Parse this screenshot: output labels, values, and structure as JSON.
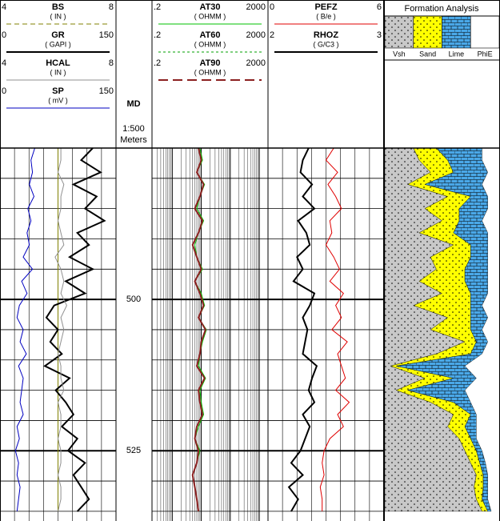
{
  "chart_data": {
    "type": "well-log",
    "depth": {
      "label": "MD",
      "scale": "1:500",
      "units": "Meters",
      "ylim": [
        475,
        536.6
      ],
      "grid": [
        475,
        480,
        485,
        490,
        495,
        500,
        505,
        510,
        515,
        520,
        525,
        530,
        535
      ],
      "labels": [
        500,
        525
      ]
    },
    "depths": [
      475,
      477,
      479,
      481,
      483,
      485,
      487,
      489,
      491,
      493,
      495,
      497,
      499,
      501,
      503,
      505,
      507,
      509,
      511,
      513,
      515,
      517,
      519,
      521,
      523,
      525,
      527,
      529,
      531,
      533,
      535
    ],
    "tracks": [
      {
        "log": false,
        "curves": [
          {
            "name": "BS",
            "unit": "( IN )",
            "scale": [
              4,
              8
            ],
            "color": "#808000",
            "dash": "6,4",
            "weight": "thin",
            "values": [
              6,
              6,
              6,
              6,
              6,
              6,
              6,
              6,
              6,
              6,
              6,
              6,
              6,
              6,
              6,
              6,
              6,
              6,
              6,
              6,
              6,
              6,
              6,
              6,
              6,
              6,
              6,
              6,
              6,
              6,
              6
            ]
          },
          {
            "name": "GR",
            "unit": "( GAPI )",
            "scale": [
              0,
              150
            ],
            "color": "#000000",
            "dash": "none",
            "weight": "bold",
            "values": [
              120,
              105,
              130,
              95,
              125,
              110,
              135,
              100,
              115,
              90,
              120,
              85,
              110,
              70,
              60,
              75,
              65,
              80,
              58,
              90,
              72,
              85,
              95,
              80,
              100,
              88,
              110,
              95,
              105,
              115,
              100
            ]
          },
          {
            "name": "HCAL",
            "unit": "( IN )",
            "scale": [
              4,
              8
            ],
            "color": "#909090",
            "dash": "none",
            "weight": "thin",
            "values": [
              6.1,
              6.1,
              6.0,
              6.2,
              6.1,
              6.1,
              6.0,
              6.1,
              6.2,
              5.9,
              6.1,
              6.2,
              6.1,
              6.3,
              6.1,
              6.2,
              6.1,
              6.0,
              6.1,
              6.1,
              6.2,
              6.0,
              6.1,
              6.1,
              6.0,
              6.1,
              6.1,
              6.0,
              6.1,
              6.1,
              6.0
            ]
          },
          {
            "name": "SP",
            "unit": "( mV )",
            "scale": [
              0,
              150
            ],
            "color": "#0000c0",
            "dash": "none",
            "weight": "thin",
            "values": [
              45,
              40,
              42,
              38,
              44,
              36,
              40,
              35,
              38,
              30,
              42,
              28,
              35,
              25,
              22,
              30,
              26,
              34,
              24,
              30,
              28,
              26,
              30,
              22,
              25,
              20,
              24,
              22,
              26,
              24,
              22
            ]
          }
        ]
      },
      {
        "log": true,
        "curves": [
          {
            "name": "AT30",
            "unit": "( OHMM )",
            "scale": [
              {
                "value": 0.2,
                "label": ".2"
              },
              2000
            ],
            "color": "#00c000",
            "dash": "none",
            "weight": "thin",
            "values": [
              9,
              11,
              7,
              13,
              9,
              7,
              12,
              8,
              6,
              7,
              11,
              6,
              10,
              13,
              8,
              15,
              11,
              9,
              8,
              14,
              9,
              10,
              12,
              8,
              6,
              9,
              7,
              5,
              6,
              7,
              8
            ]
          },
          {
            "name": "AT60",
            "unit": "( OHMM )",
            "scale": [
              {
                "value": 0.2,
                "label": ".2"
              },
              2000
            ],
            "color": "#00a000",
            "dash": "3,3",
            "weight": "thin",
            "values": [
              8,
              10,
              7,
              12,
              9,
              6,
              11,
              8,
              5,
              7,
              10,
              6,
              9,
              12,
              8,
              14,
              10,
              9,
              7,
              13,
              8,
              9,
              11,
              7,
              6,
              8,
              7,
              5,
              6,
              7,
              8
            ]
          },
          {
            "name": "AT90",
            "unit": "( OHMM )",
            "scale": [
              {
                "value": 0.2,
                "label": ".2"
              },
              2000
            ],
            "color": "#8b2020",
            "dash": "12,6",
            "weight": "bold",
            "values": [
              8,
              10,
              7,
              12,
              9,
              6,
              11,
              8,
              5,
              7,
              10,
              6,
              9,
              12,
              8,
              14,
              10,
              9,
              7,
              13,
              8,
              9,
              11,
              7,
              6,
              8,
              7,
              5,
              6,
              7,
              8
            ]
          }
        ]
      },
      {
        "log": false,
        "curves": [
          {
            "name": "PEFZ",
            "unit": "( B/e )",
            "scale": [
              0,
              6
            ],
            "color": "#e00000",
            "dash": "none",
            "weight": "thin",
            "values": [
              3.4,
              3.0,
              3.6,
              3.1,
              3.5,
              3.8,
              3.2,
              3.3,
              3.0,
              3.4,
              3.7,
              3.2,
              3.9,
              3.5,
              3.8,
              3.3,
              4.1,
              3.6,
              3.8,
              4.0,
              3.5,
              4.2,
              3.6,
              3.9,
              3.2,
              2.9,
              2.8,
              2.9,
              2.7,
              2.8,
              2.8
            ]
          },
          {
            "name": "RHOZ",
            "unit": "( G/C3 )",
            "scale": [
              2,
              3
            ],
            "color": "#000000",
            "dash": "none",
            "weight": "bold",
            "values": [
              2.35,
              2.3,
              2.28,
              2.38,
              2.3,
              2.4,
              2.26,
              2.33,
              2.36,
              2.25,
              2.3,
              2.22,
              2.4,
              2.36,
              2.3,
              2.34,
              2.32,
              2.3,
              2.42,
              2.38,
              2.35,
              2.4,
              2.3,
              2.36,
              2.32,
              2.28,
              2.2,
              2.3,
              2.18,
              2.26,
              2.2
            ]
          }
        ]
      }
    ],
    "formation": {
      "title": "Formation Analysis",
      "xlim": [
        0,
        1
      ],
      "series": [
        {
          "name": "Vsh",
          "color": "#c8c8c8",
          "pattern": "dots",
          "values": [
            0.25,
            0.3,
            0.4,
            0.2,
            0.55,
            0.35,
            0.5,
            0.3,
            0.6,
            0.4,
            0.45,
            0.3,
            0.5,
            0.25,
            0.55,
            0.4,
            0.7,
            0.45,
            0.05,
            0.35,
            0.1,
            0.4,
            0.6,
            0.55,
            0.65,
            0.7,
            0.75,
            0.8,
            0.78,
            0.8,
            0.85
          ]
        },
        {
          "name": "Sand",
          "color": "#ffff00",
          "pattern": "dots",
          "values": [
            0.2,
            0.25,
            0.2,
            0.15,
            0.2,
            0.3,
            0.15,
            0.3,
            0.15,
            0.35,
            0.25,
            0.4,
            0.25,
            0.5,
            0.2,
            0.35,
            0.1,
            0.3,
            0.05,
            0.25,
            0.1,
            0.2,
            0.15,
            0.15,
            0.1,
            0.1,
            0.08,
            0.06,
            0.08,
            0.05,
            0.05
          ]
        },
        {
          "name": "Lime",
          "color": "#4aa8e8",
          "pattern": "brick",
          "values": [
            0.4,
            0.3,
            0.3,
            0.5,
            0.15,
            0.25,
            0.2,
            0.3,
            0.15,
            0.15,
            0.2,
            0.2,
            0.15,
            0.1,
            0.15,
            0.1,
            0.1,
            0.1,
            0.6,
            0.2,
            0.5,
            0.15,
            0.05,
            0.1,
            0.05,
            0.05,
            0.05,
            0.04,
            0.04,
            0.05,
            0.03
          ]
        }
      ],
      "legend_extra": "PhiE"
    }
  }
}
